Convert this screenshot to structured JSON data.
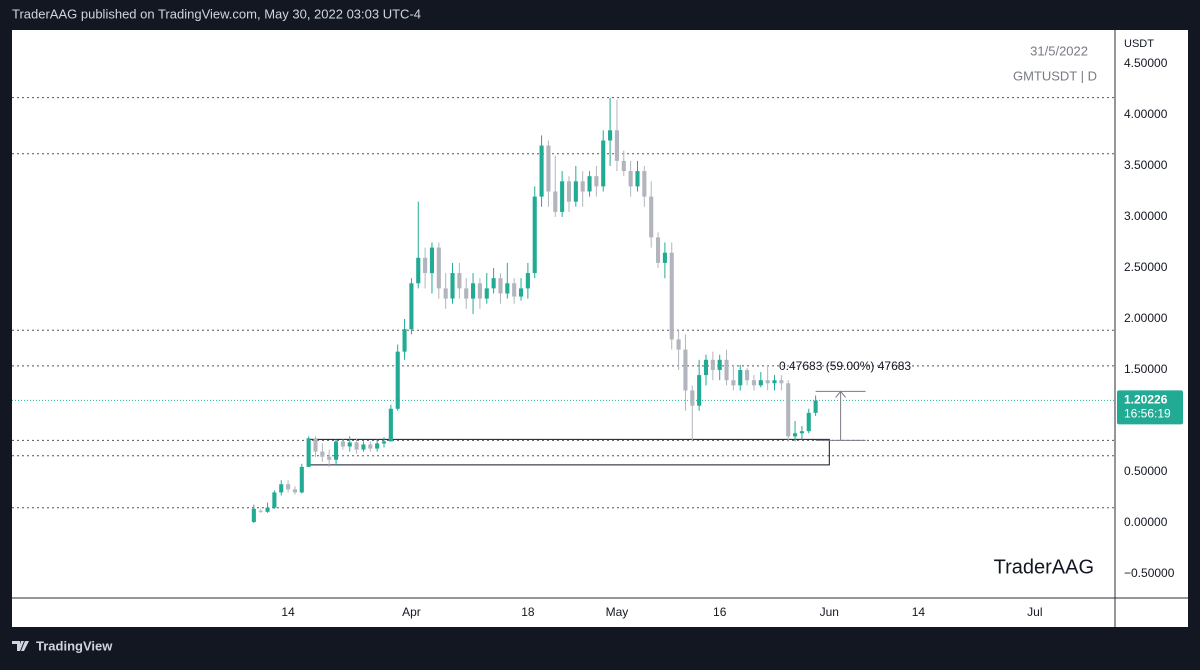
{
  "header": "TraderAAG published on TradingView.com, May 30, 2022 03:03 UTC-4",
  "footer": "TradingView",
  "chart_data": {
    "type": "candlestick",
    "date_label": "31/5/2022",
    "symbol": "GMTUSDT | D",
    "currency": "USDT",
    "watermark": "TraderAAG",
    "up_color": "#22ab94",
    "down_color": "#b2b5be",
    "x": [
      68,
      69,
      70,
      71,
      72,
      73,
      74,
      75,
      76,
      77,
      78,
      79,
      80,
      81,
      82,
      83,
      84,
      85,
      86,
      87,
      88,
      89,
      90,
      91,
      92,
      93,
      94,
      95,
      96,
      97,
      98,
      99,
      100,
      101,
      102,
      103,
      104,
      105,
      106,
      107,
      108,
      109,
      110,
      111,
      112,
      113,
      114,
      115,
      116,
      117,
      118,
      119,
      120,
      121,
      122,
      123,
      124,
      125,
      126,
      127,
      128,
      129,
      130,
      131,
      132,
      133,
      134,
      135,
      136,
      137,
      138,
      139,
      140,
      141,
      142,
      143,
      144,
      145,
      146,
      147,
      148,
      149,
      150
    ],
    "open": [
      0.01,
      0.12,
      0.11,
      0.15,
      0.3,
      0.38,
      0.33,
      0.3,
      0.55,
      0.83,
      0.7,
      0.65,
      0.62,
      0.8,
      0.75,
      0.79,
      0.72,
      0.77,
      0.73,
      0.78,
      0.8,
      1.12,
      1.68,
      1.9,
      2.35,
      2.6,
      2.45,
      2.7,
      2.3,
      2.2,
      2.45,
      2.3,
      2.2,
      2.35,
      2.2,
      2.3,
      2.4,
      2.25,
      2.35,
      2.22,
      2.3,
      2.45,
      3.2,
      3.7,
      3.25,
      3.05,
      3.35,
      3.15,
      3.35,
      3.25,
      3.4,
      3.3,
      3.75,
      3.85,
      3.55,
      3.45,
      3.3,
      3.45,
      3.2,
      2.8,
      2.55,
      2.65,
      1.8,
      1.7,
      1.3,
      1.15,
      1.45,
      1.6,
      1.5,
      1.6,
      1.4,
      1.35,
      1.5,
      1.4,
      1.35,
      1.4,
      1.37,
      1.4,
      1.37,
      0.85,
      0.88,
      0.9,
      1.08
    ],
    "high": [
      0.18,
      0.14,
      0.2,
      0.32,
      0.42,
      0.42,
      0.36,
      0.58,
      0.85,
      0.85,
      0.78,
      0.72,
      0.82,
      0.82,
      0.85,
      0.83,
      0.8,
      0.8,
      0.82,
      0.84,
      1.16,
      1.75,
      2.0,
      2.4,
      3.15,
      2.7,
      2.75,
      2.75,
      2.45,
      2.55,
      2.55,
      2.4,
      2.45,
      2.4,
      2.45,
      2.5,
      2.45,
      2.55,
      2.4,
      2.4,
      2.55,
      3.3,
      3.8,
      3.75,
      3.6,
      3.45,
      3.4,
      3.5,
      3.45,
      3.45,
      3.5,
      3.85,
      4.17,
      4.15,
      3.65,
      3.55,
      3.55,
      3.5,
      3.35,
      2.85,
      2.75,
      2.75,
      1.9,
      1.85,
      1.35,
      1.6,
      1.65,
      1.68,
      1.65,
      1.7,
      1.55,
      1.55,
      1.52,
      1.45,
      1.48,
      1.55,
      1.45,
      1.45,
      1.4,
      1.0,
      0.95,
      1.12,
      1.25
    ],
    "low": [
      0.0,
      0.1,
      0.1,
      0.14,
      0.27,
      0.3,
      0.28,
      0.29,
      0.55,
      0.65,
      0.6,
      0.55,
      0.57,
      0.72,
      0.7,
      0.68,
      0.7,
      0.7,
      0.7,
      0.74,
      0.8,
      1.1,
      1.6,
      1.85,
      2.3,
      2.3,
      2.25,
      2.2,
      2.1,
      2.15,
      2.2,
      2.1,
      2.05,
      2.1,
      2.15,
      2.25,
      2.15,
      2.2,
      2.15,
      2.18,
      2.2,
      2.4,
      3.1,
      3.1,
      3.0,
      3.0,
      3.05,
      3.1,
      3.1,
      3.2,
      3.2,
      3.25,
      3.5,
      3.45,
      3.4,
      3.2,
      3.25,
      3.1,
      2.7,
      2.5,
      2.4,
      1.7,
      1.5,
      1.1,
      0.8,
      1.1,
      1.35,
      1.4,
      1.4,
      1.35,
      1.3,
      1.3,
      1.35,
      1.3,
      1.33,
      1.3,
      1.3,
      1.3,
      0.8,
      0.8,
      0.82,
      0.88,
      1.05
    ],
    "close": [
      0.14,
      0.11,
      0.15,
      0.3,
      0.38,
      0.33,
      0.3,
      0.55,
      0.83,
      0.7,
      0.65,
      0.62,
      0.8,
      0.75,
      0.79,
      0.72,
      0.77,
      0.73,
      0.78,
      0.8,
      1.12,
      1.68,
      1.9,
      2.35,
      2.6,
      2.45,
      2.7,
      2.3,
      2.2,
      2.45,
      2.3,
      2.2,
      2.35,
      2.2,
      2.3,
      2.4,
      2.25,
      2.35,
      2.22,
      2.3,
      2.45,
      3.2,
      3.7,
      3.25,
      3.05,
      3.35,
      3.15,
      3.35,
      3.25,
      3.4,
      3.3,
      3.75,
      3.85,
      3.55,
      3.45,
      3.3,
      3.45,
      3.2,
      2.8,
      2.55,
      2.65,
      1.8,
      1.7,
      1.3,
      1.15,
      1.45,
      1.6,
      1.5,
      1.6,
      1.4,
      1.35,
      1.5,
      1.4,
      1.35,
      1.4,
      1.37,
      1.4,
      1.37,
      0.85,
      0.88,
      0.9,
      1.08,
      1.2
    ],
    "xlim": [
      32.7,
      193.7
    ],
    "ylim": [
      -0.735,
      4.833
    ],
    "xticks": [
      {
        "value": 73,
        "label": "14"
      },
      {
        "value": 91,
        "label": "Apr"
      },
      {
        "value": 108,
        "label": "18"
      },
      {
        "value": 121,
        "label": "May"
      },
      {
        "value": 136,
        "label": "16"
      },
      {
        "value": 152,
        "label": "Jun"
      },
      {
        "value": 165,
        "label": "14"
      },
      {
        "value": 182,
        "label": "Jul"
      }
    ],
    "yticks": [
      {
        "value": -0.5,
        "label": "−0.50000"
      },
      {
        "value": 0,
        "label": "0.00000"
      },
      {
        "value": 0.5,
        "label": "0.50000"
      },
      {
        "value": 1,
        "label": "1.00000"
      },
      {
        "value": 1.5,
        "label": "1.50000"
      },
      {
        "value": 2,
        "label": "2.00000"
      },
      {
        "value": 2.5,
        "label": "2.50000"
      },
      {
        "value": 3,
        "label": "3.00000"
      },
      {
        "value": 3.5,
        "label": "3.50000"
      },
      {
        "value": 4,
        "label": "4.00000"
      },
      {
        "value": 4.5,
        "label": "4.50000"
      }
    ],
    "levels": [
      4.17,
      3.62,
      1.89,
      1.54,
      0.81,
      0.66,
      0.15
    ],
    "zone": {
      "x": [
        76,
        152
      ],
      "y": [
        0.57,
        0.82
      ]
    },
    "measure": {
      "x": [
        150,
        157.3
      ],
      "y": [
        0.81,
        1.29
      ],
      "label": "0.47683 (59.00%) 47683"
    },
    "last_price": 1.20226,
    "countdown": "16:56:19"
  }
}
